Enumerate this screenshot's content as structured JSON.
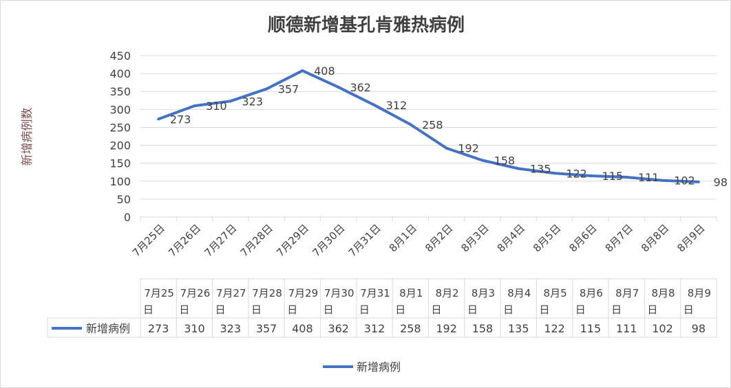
{
  "chart_data": {
    "type": "line",
    "title": "顺德新增基孔肯雅热病例",
    "ylabel": "新增病例数",
    "xlabel": "",
    "ylim": [
      0,
      450
    ],
    "yticks": [
      0,
      50,
      100,
      150,
      200,
      250,
      300,
      350,
      400,
      450
    ],
    "grid": true,
    "legend_position": "bottom",
    "categories": [
      "7月25日",
      "7月26日",
      "7月27日",
      "7月28日",
      "7月29日",
      "7月30日",
      "7月31日",
      "8月1日",
      "8月2日",
      "8月3日",
      "8月4日",
      "8月5日",
      "8月6日",
      "8月7日",
      "8月8日",
      "8月9日"
    ],
    "series": [
      {
        "name": "新增病例",
        "color": "#4472C4",
        "values": [
          273,
          310,
          323,
          357,
          408,
          362,
          312,
          258,
          192,
          158,
          135,
          122,
          115,
          111,
          102,
          98
        ]
      }
    ],
    "data_table": true
  }
}
